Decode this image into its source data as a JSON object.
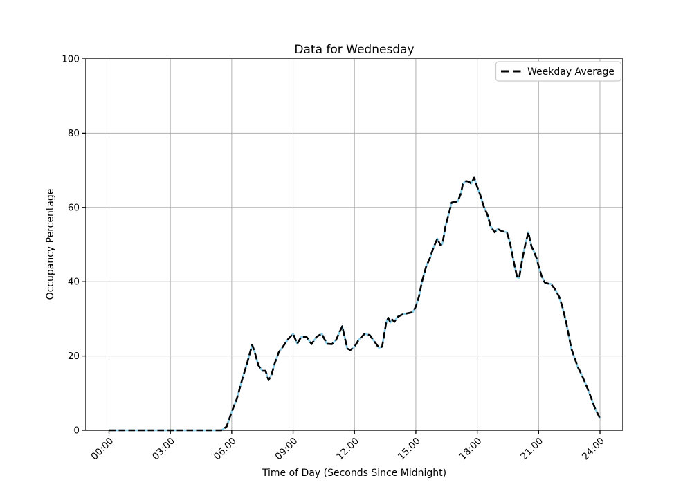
{
  "figure": {
    "title": "Data for Wednesday",
    "xlabel": "Time of Day (Seconds Since Midnight)",
    "ylabel": "Occupancy Percentage",
    "legend_label": "Weekday Average"
  },
  "colors": {
    "background": "#ffffff",
    "grid": "#b0b0b0",
    "spine": "#000000",
    "series_under_solid": "#87ceeb",
    "series_dashed": "#000000",
    "legend_border": "#cccccc",
    "legend_fill": "#ffffff"
  },
  "chart_data": {
    "type": "line",
    "title": "Data for Wednesday",
    "xlabel": "Time of Day (Seconds Since Midnight)",
    "ylabel": "Occupancy Percentage",
    "grid": true,
    "legend_position": "upper right",
    "xlim_hours": [
      0,
      24
    ],
    "ylim": [
      0,
      100
    ],
    "x_ticks_hours": [
      0,
      3,
      6,
      9,
      12,
      15,
      18,
      21,
      24
    ],
    "x_ticks_seconds": [
      0,
      10800,
      21600,
      32400,
      43200,
      54000,
      64800,
      75600,
      86400
    ],
    "x_tick_labels": [
      "00:00",
      "03:00",
      "06:00",
      "09:00",
      "12:00",
      "15:00",
      "18:00",
      "21:00",
      "24:00"
    ],
    "x_tick_rotation_deg": 45,
    "y_ticks": [
      0,
      20,
      40,
      60,
      80,
      100
    ],
    "y_tick_labels": [
      "0",
      "20",
      "40",
      "60",
      "80",
      "100"
    ],
    "x_hours": [
      0,
      5.5,
      5.75,
      6,
      6.25,
      6.5,
      6.75,
      7,
      7.1,
      7.3,
      7.5,
      7.65,
      7.8,
      7.95,
      8.1,
      8.3,
      8.5,
      8.75,
      9,
      9.2,
      9.4,
      9.65,
      9.9,
      10.15,
      10.4,
      10.65,
      10.9,
      11.1,
      11.4,
      11.65,
      11.8,
      12,
      12.2,
      12.5,
      12.75,
      13,
      13.2,
      13.35,
      13.55,
      13.65,
      13.75,
      13.85,
      13.95,
      14.1,
      14.35,
      14.6,
      14.85,
      15,
      15.15,
      15.3,
      15.5,
      15.7,
      15.85,
      16.05,
      16.2,
      16.3,
      16.45,
      16.6,
      16.75,
      17.05,
      17.2,
      17.3,
      17.45,
      17.6,
      17.7,
      17.85,
      18,
      18.15,
      18.3,
      18.5,
      18.65,
      18.85,
      19,
      19.2,
      19.45,
      19.6,
      19.8,
      19.95,
      20.05,
      20.2,
      20.35,
      20.5,
      20.65,
      20.75,
      20.9,
      21,
      21.15,
      21.3,
      21.45,
      21.6,
      21.8,
      22,
      22.15,
      22.35,
      22.6,
      22.9,
      23.1,
      23.3,
      23.55,
      23.75,
      24
    ],
    "values": [
      0,
      0,
      1,
      5,
      8.5,
      13.5,
      18,
      23,
      21.5,
      17.5,
      16,
      16,
      13.5,
      15,
      18,
      21,
      22.5,
      24.5,
      26,
      23.3,
      25.2,
      25.2,
      23.2,
      25.2,
      26,
      23.3,
      23.2,
      24.3,
      28,
      22,
      21.6,
      22.5,
      24.3,
      26,
      25.6,
      23.7,
      22.2,
      22.5,
      29,
      30.3,
      29,
      29.8,
      29.2,
      30.5,
      31.2,
      31.5,
      31.8,
      33.3,
      36,
      40,
      44,
      46.5,
      49,
      51.6,
      49.8,
      50.2,
      55,
      58,
      61.3,
      61.6,
      63.7,
      66.3,
      67.1,
      66.9,
      66.4,
      68,
      65.5,
      63.3,
      60.5,
      58,
      55,
      53.3,
      54.2,
      53.6,
      53.3,
      50.5,
      45,
      41.2,
      41,
      46,
      50,
      53.3,
      49.5,
      48.4,
      46.3,
      44.2,
      41.5,
      39.8,
      39.5,
      39.4,
      38,
      36,
      33.5,
      29,
      22,
      17.2,
      15,
      12.5,
      9,
      6,
      3.2
    ],
    "series": [
      {
        "name": "",
        "in_legend": false,
        "color": "#87ceeb",
        "line_style": "solid",
        "line_width": 2.6,
        "data": "shared x_hours/values"
      },
      {
        "name": "Weekday Average",
        "in_legend": true,
        "color": "#000000",
        "line_style": "dashed",
        "line_width": 2.6,
        "data": "shared x_hours/values"
      }
    ]
  }
}
